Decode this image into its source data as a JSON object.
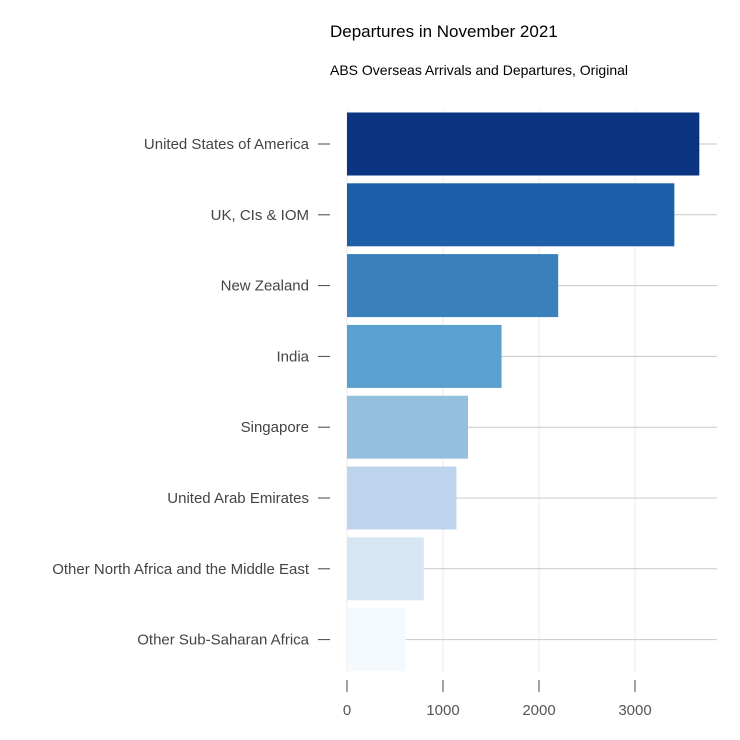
{
  "chart_data": {
    "type": "bar",
    "orientation": "horizontal",
    "title": "Departures in November 2021",
    "subtitle": "ABS Overseas Arrivals and Departures, Original",
    "xlabel": "",
    "ylabel": "",
    "categories": [
      "United States of America",
      "UK, CIs & IOM",
      "New Zealand",
      "India",
      "Singapore",
      "United Arab Emirates",
      "Other North Africa and the Middle East",
      "Other Sub-Saharan Africa"
    ],
    "values": [
      3670,
      3410,
      2200,
      1610,
      1260,
      1140,
      800,
      610
    ],
    "colors": [
      "#0b3480",
      "#1c5ea8",
      "#3a80bc",
      "#5ba1cf",
      "#93c0dd",
      "#bdd4ed",
      "#d6e6f4",
      "#f4f9fe"
    ],
    "xlim": [
      0,
      3850
    ],
    "x_ticks": [
      0,
      1000,
      2000,
      3000
    ],
    "x_tick_labels": [
      "0",
      "1000",
      "2000",
      "3000"
    ],
    "grid": "horizontal",
    "legend": "none"
  }
}
